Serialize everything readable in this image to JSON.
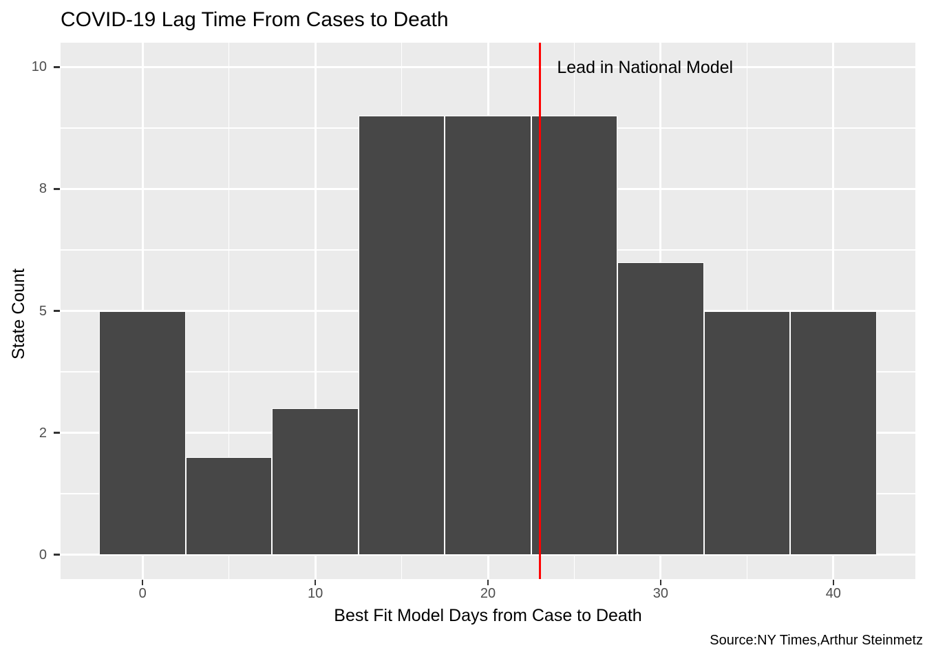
{
  "chart_data": {
    "type": "histogram",
    "title": "COVID-19 Lag Time From Cases to Death",
    "xlabel": "Best Fit Model Days from Case to Death",
    "ylabel": "State Count",
    "caption": "Source:NY Times,Arthur Steinmetz",
    "binwidth": 5,
    "bin_centers": [
      0,
      5,
      10,
      15,
      20,
      25,
      30,
      35,
      40
    ],
    "counts": [
      5,
      2,
      3,
      9,
      9,
      9,
      6,
      5,
      5
    ],
    "xlim": [
      -4.75,
      44.75
    ],
    "ylim": [
      -0.5,
      10.5
    ],
    "x_ticks": [
      {
        "value": 0,
        "label": "0"
      },
      {
        "value": 10,
        "label": "10"
      },
      {
        "value": 20,
        "label": "20"
      },
      {
        "value": 30,
        "label": "30"
      },
      {
        "value": 40,
        "label": "40"
      }
    ],
    "y_ticks": [
      {
        "value": 0,
        "label": "0"
      },
      {
        "value": 2.5,
        "label": "2"
      },
      {
        "value": 5,
        "label": "5"
      },
      {
        "value": 7.5,
        "label": "8"
      },
      {
        "value": 10,
        "label": "10"
      }
    ],
    "x_minor_breaks": [
      5,
      15,
      25,
      35
    ],
    "y_minor_breaks": [
      1.25,
      3.75,
      6.25,
      8.75
    ],
    "vline": {
      "x": 23,
      "color": "#FF0000",
      "label": "Lead in National Model",
      "label_x": 24,
      "label_y": 10
    },
    "colors": {
      "bar_fill": "#474747",
      "bar_outline": "#FFFFFF",
      "panel_background": "#EBEBEB",
      "grid": "#FFFFFF",
      "tick_mark": "#333333",
      "tick_label": "#4D4D4D",
      "text": "#000000"
    },
    "grid": true,
    "legend": "none"
  }
}
